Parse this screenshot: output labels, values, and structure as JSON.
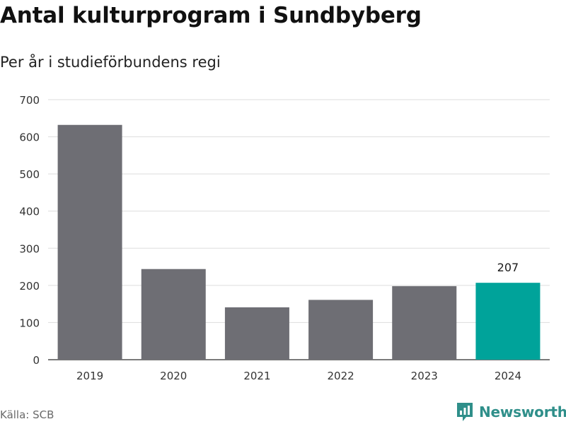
{
  "header": {
    "title": "Antal kulturprogram i Sundbyberg",
    "subtitle": "Per år i studieförbundens regi"
  },
  "footer": {
    "source": "Källa: SCB",
    "brand": "Newsworthy"
  },
  "colors": {
    "bar": "#6e6e74",
    "highlight": "#00a39a",
    "brand": "#2f8f8a"
  },
  "chart_data": {
    "type": "bar",
    "categories": [
      "2019",
      "2020",
      "2021",
      "2022",
      "2023",
      "2024"
    ],
    "values": [
      632,
      244,
      141,
      161,
      198,
      207
    ],
    "highlight_index": 5,
    "data_labels": [
      {
        "index": 5,
        "text": "207"
      }
    ],
    "ylim": [
      0,
      700
    ],
    "yticks": [
      0,
      100,
      200,
      300,
      400,
      500,
      600,
      700
    ],
    "grid": true,
    "xlabel": "",
    "ylabel": ""
  }
}
